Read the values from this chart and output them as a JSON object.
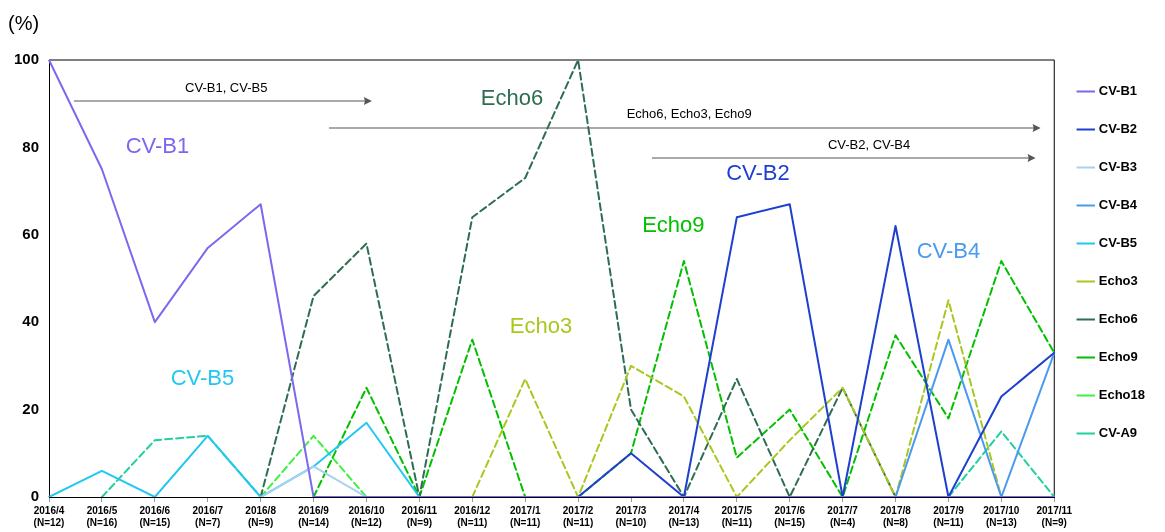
{
  "chart_data": {
    "type": "line",
    "ylabel": "(%)",
    "categories": [
      "2016/4\n(N=12)",
      "2016/5\n(N=16)",
      "2016/6\n(N=15)",
      "2016/7\n(N=7)",
      "2016/8\n(N=9)",
      "2016/9\n(N=14)",
      "2016/10\n(N=12)",
      "2016/11\n(N=9)",
      "2016/12\n(N=11)",
      "2017/1\n(N=11)",
      "2017/2\n(N=11)",
      "2017/3\n(N=10)",
      "2017/4\n(N=13)",
      "2017/5\n(N=11)",
      "2017/6\n(N=15)",
      "2017/7\n(N=4)",
      "2017/8\n(N=8)",
      "2017/9\n(N=11)",
      "2017/10\n(N=13)",
      "2017/11\n(N=9)"
    ],
    "series": [
      {
        "name": "CV-B1",
        "color": "#7b68ee",
        "line_style": "solid",
        "values": [
          100,
          75,
          40,
          57,
          67,
          0,
          0,
          0,
          0,
          0,
          0,
          0,
          0,
          0,
          0,
          0,
          0,
          0,
          0,
          0
        ]
      },
      {
        "name": "CV-B2",
        "color": "#1f3fcf",
        "line_style": "solid",
        "values": [
          null,
          null,
          null,
          null,
          null,
          null,
          null,
          null,
          null,
          null,
          0,
          10,
          0,
          64,
          67,
          0,
          62,
          0,
          23,
          33
        ]
      },
      {
        "name": "CV-B3",
        "color": "#a8d0f0",
        "line_style": "solid",
        "values": [
          null,
          null,
          null,
          null,
          0,
          7,
          0,
          null,
          null,
          null,
          null,
          null,
          null,
          null,
          null,
          null,
          null,
          null,
          null,
          null
        ]
      },
      {
        "name": "CV-B4",
        "color": "#4a9af0",
        "line_style": "solid",
        "values": [
          null,
          null,
          null,
          null,
          null,
          null,
          null,
          null,
          null,
          null,
          null,
          null,
          null,
          null,
          null,
          null,
          0,
          36,
          0,
          33
        ]
      },
      {
        "name": "CV-B5",
        "color": "#22c8f0",
        "line_style": "solid",
        "values": [
          0,
          6,
          0,
          14,
          0,
          7,
          17,
          0,
          null,
          null,
          null,
          null,
          null,
          null,
          null,
          null,
          null,
          null,
          null,
          null
        ]
      },
      {
        "name": "Echo3",
        "color": "#a8c820",
        "line_style": "dashed",
        "values": [
          null,
          null,
          null,
          null,
          null,
          null,
          null,
          null,
          0,
          27,
          0,
          30,
          23,
          0,
          13,
          25,
          0,
          45,
          0,
          null
        ]
      },
      {
        "name": "Echo6",
        "color": "#2e6e50",
        "line_style": "dashed",
        "values": [
          null,
          null,
          null,
          null,
          0,
          46,
          58,
          0,
          64,
          73,
          100,
          20,
          0,
          27,
          0,
          25,
          0,
          null,
          null,
          null
        ]
      },
      {
        "name": "Echo9",
        "color": "#00c000",
        "line_style": "dashed",
        "values": [
          null,
          null,
          null,
          null,
          null,
          0,
          25,
          0,
          36,
          0,
          0,
          10,
          54,
          9,
          20,
          0,
          37,
          18,
          54,
          33
        ]
      },
      {
        "name": "Echo18",
        "color": "#40f040",
        "line_style": "dashed",
        "values": [
          null,
          null,
          null,
          null,
          0,
          14,
          0,
          null,
          null,
          null,
          null,
          null,
          null,
          null,
          null,
          null,
          null,
          null,
          null,
          null
        ]
      },
      {
        "name": "CV-A9",
        "color": "#20d0a0",
        "line_style": "dashed",
        "values": [
          null,
          0,
          13,
          14,
          0,
          null,
          null,
          null,
          null,
          null,
          null,
          null,
          null,
          null,
          null,
          null,
          null,
          0,
          15,
          0
        ]
      }
    ],
    "ylim": [
      0,
      100
    ],
    "yticks": [
      0,
      20,
      40,
      60,
      80,
      100
    ],
    "grid": false,
    "legend": "right",
    "marker": "none",
    "annotations": [
      "CV-B1, CV-B5",
      "Echo6, Echo3, Echo9",
      "CV-B2, CV-B4",
      "CV-B1",
      "CV-B5",
      "Echo6",
      "Echo3",
      "Echo9",
      "CV-B2",
      "CV-B4"
    ]
  }
}
